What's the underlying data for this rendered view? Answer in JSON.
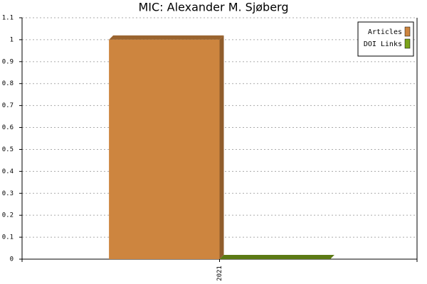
{
  "chart_data": {
    "type": "bar",
    "title": "MIC: Alexander M. Sjøberg",
    "categories": [
      "2021"
    ],
    "series": [
      {
        "name": "Articles",
        "color": "#cd853f",
        "values": [
          1
        ]
      },
      {
        "name": "DOI Links",
        "color": "#7ba31a",
        "values": [
          0
        ]
      }
    ],
    "ylim": [
      0,
      1.1
    ],
    "yticks": [
      0,
      0.1,
      0.2,
      0.3,
      0.4,
      0.5,
      0.6,
      0.7,
      0.8,
      0.9,
      1,
      1.1
    ],
    "grid": true,
    "legend": "top-right"
  }
}
